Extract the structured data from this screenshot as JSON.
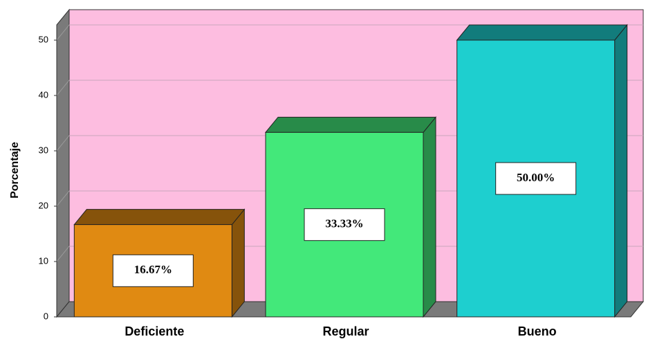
{
  "chart_data": {
    "type": "bar",
    "y_label": "Porcentaje",
    "categories": [
      "Deficiente",
      "Regular",
      "Bueno"
    ],
    "values": [
      16.67,
      33.33,
      50
    ],
    "value_labels": [
      "16.67%",
      "33.33%",
      "50.00%"
    ],
    "colors": [
      "#e08a12",
      "#43e87a",
      "#1ecfcf"
    ],
    "ylim": [
      0,
      52.75
    ],
    "yticks": [
      0,
      10,
      20,
      30,
      40,
      50
    ],
    "grid": true
  }
}
